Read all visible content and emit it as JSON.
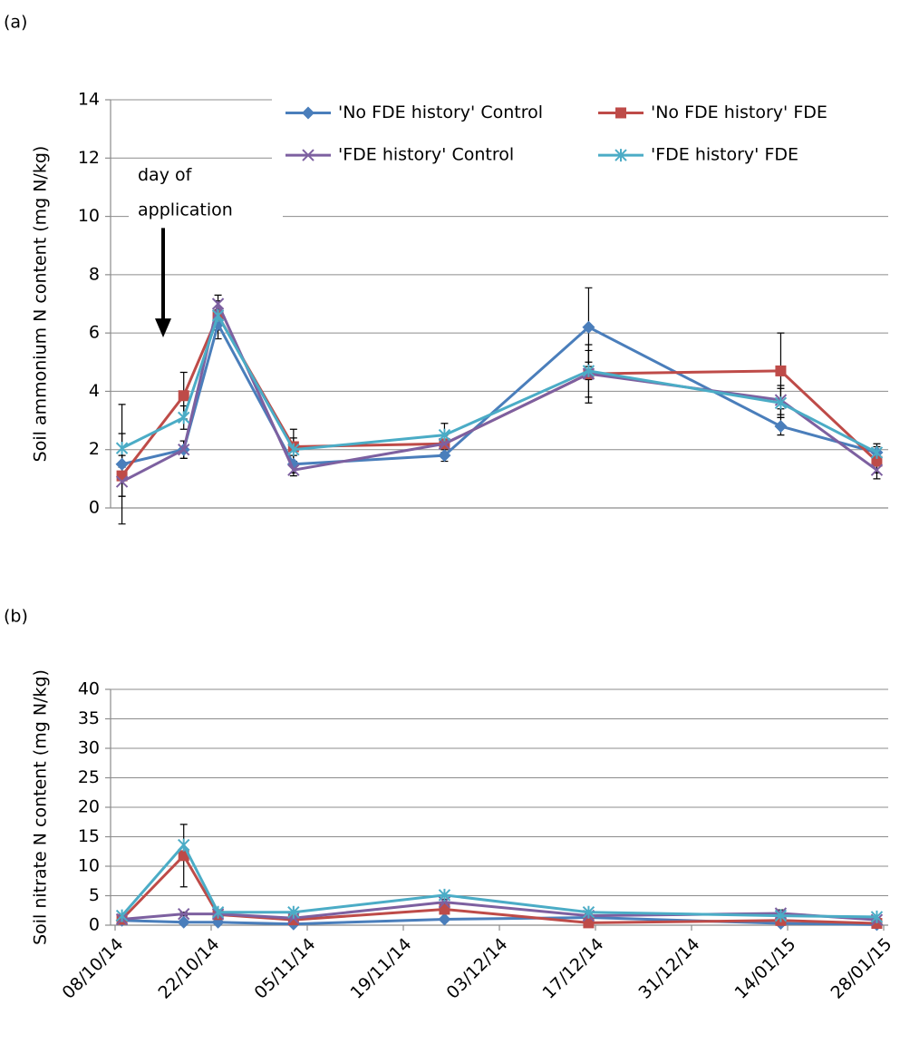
{
  "chart_data": [
    {
      "type": "line",
      "panel_label": "(a)",
      "y_label": "Soil ammonium N content (mg N/kg)",
      "annotation": [
        "day of",
        "application"
      ],
      "x": [
        "09/10/14",
        "18/10/14",
        "23/10/14",
        "03/11/14",
        "25/11/14",
        "16/12/14",
        "13/01/15",
        "27/01/15"
      ],
      "xlim": [
        "08/10/14",
        "28/01/15"
      ],
      "ylim": [
        0,
        14
      ],
      "yticks": [
        0,
        2,
        4,
        6,
        8,
        10,
        12,
        14
      ],
      "grid": true,
      "series": [
        {
          "name": "'No FDE history' Control",
          "color": "#4a7ebb",
          "marker": "diamond",
          "values": [
            1.5,
            2.0,
            6.3,
            1.5,
            1.8,
            6.2,
            2.8,
            1.9
          ],
          "errors": [
            2.05,
            0.3,
            0.5,
            0.3,
            0.2,
            1.35,
            0.3,
            0.2
          ]
        },
        {
          "name": "'No FDE history' FDE",
          "color": "#be4b48",
          "marker": "square",
          "values": [
            1.1,
            3.85,
            6.6,
            2.1,
            2.2,
            4.6,
            4.7,
            1.6
          ],
          "errors": [
            0.7,
            0.8,
            0.5,
            0.6,
            0.3,
            1.0,
            1.3,
            0.4
          ]
        },
        {
          "name": "'FDE history' Control",
          "color": "#7d60a0",
          "marker": "x",
          "values": [
            0.9,
            2.0,
            7.0,
            1.3,
            2.2,
            4.6,
            3.7,
            1.3
          ],
          "errors": [
            0.5,
            0.3,
            0.3,
            0.2,
            0.3,
            0.8,
            0.5,
            0.3
          ]
        },
        {
          "name": "'FDE history' FDE",
          "color": "#4bacc6",
          "marker": "asterisk",
          "values": [
            2.05,
            3.1,
            6.6,
            2.0,
            2.5,
            4.7,
            3.6,
            1.9
          ],
          "errors": [
            0.5,
            0.4,
            0.5,
            0.4,
            0.4,
            0.3,
            0.5,
            0.3
          ]
        }
      ]
    },
    {
      "type": "line",
      "panel_label": "(b)",
      "y_label": "Soil nitrate N content (mg N/kg)",
      "x": [
        "09/10/14",
        "18/10/14",
        "23/10/14",
        "03/11/14",
        "25/11/14",
        "16/12/14",
        "13/01/15",
        "27/01/15"
      ],
      "xlim": [
        "08/10/14",
        "28/01/15"
      ],
      "xticks": [
        "08/10/14",
        "22/10/14",
        "05/11/14",
        "19/11/14",
        "03/12/14",
        "17/12/14",
        "31/12/14",
        "14/01/15",
        "28/01/15"
      ],
      "ylim": [
        0,
        40
      ],
      "yticks": [
        0,
        5,
        10,
        15,
        20,
        25,
        30,
        35,
        40
      ],
      "grid": true,
      "series": [
        {
          "name": "'No FDE history' Control",
          "color": "#4a7ebb",
          "marker": "diamond",
          "values": [
            0.8,
            0.5,
            0.5,
            0.2,
            1.0,
            1.3,
            0.3,
            0.1
          ]
        },
        {
          "name": "'No FDE history' FDE",
          "color": "#be4b48",
          "marker": "square",
          "values": [
            1.0,
            11.8,
            1.8,
            0.9,
            2.7,
            0.4,
            0.8,
            0.3
          ],
          "errors": [
            0.5,
            5.3,
            0.5,
            0.5,
            0.8,
            0.3,
            0.5,
            0.3
          ]
        },
        {
          "name": "'FDE history' Control",
          "color": "#7d60a0",
          "marker": "x",
          "values": [
            1.0,
            1.9,
            1.9,
            1.2,
            3.9,
            1.6,
            2.0,
            0.9
          ],
          "errors": [
            0.3,
            0.3,
            0.3,
            0.3,
            0.5,
            0.3,
            0.6,
            0.3
          ]
        },
        {
          "name": "'FDE history' FDE",
          "color": "#4bacc6",
          "marker": "asterisk",
          "values": [
            1.6,
            13.6,
            2.2,
            2.2,
            5.1,
            2.2,
            1.6,
            1.4
          ]
        }
      ]
    }
  ]
}
